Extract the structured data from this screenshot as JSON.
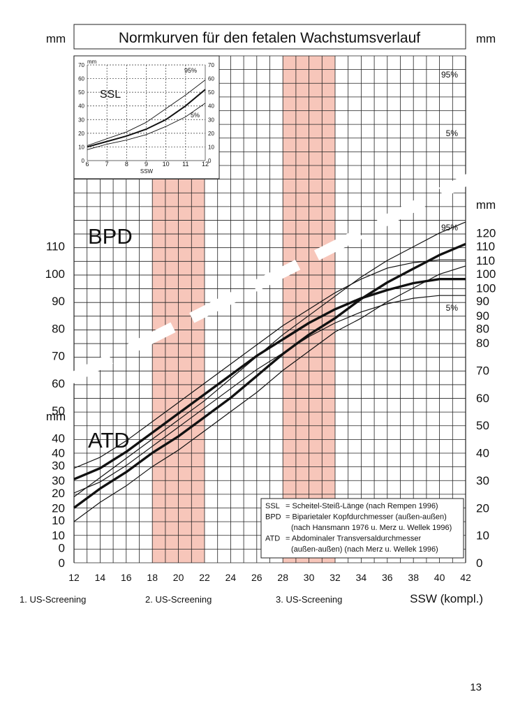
{
  "title": "Normkurven für den fetalen Wachstumsverlauf",
  "page_number": "13",
  "unit_label": "mm",
  "x_axis": {
    "label": "SSW (kompl.)",
    "min": 12,
    "max": 42,
    "ticks": [
      12,
      14,
      16,
      18,
      20,
      22,
      24,
      26,
      28,
      30,
      32,
      34,
      36,
      38,
      40,
      42
    ]
  },
  "screenings": [
    {
      "label": "1. US-Screening",
      "from": null,
      "to": null
    },
    {
      "label": "2. US-Screening",
      "from": 18,
      "to": 22
    },
    {
      "label": "3. US-Screening",
      "from": 28,
      "to": 32
    }
  ],
  "legend": [
    {
      "abbr": "SSL",
      "text": "= Scheitel-Steiß-Länge (nach Rempen 1996)"
    },
    {
      "abbr": "BPD",
      "text": "= Biparietaler Kopfdurchmesser (außen-außen)"
    },
    {
      "abbr": "",
      "text": "(nach Hansmann 1976 u. Merz u. Wellek 1996)"
    },
    {
      "abbr": "ATD",
      "text": "= Abdominaler Transversaldurchmesser"
    },
    {
      "abbr": "",
      "text": "(außen-außen) (nach Merz u. Wellek 1996)"
    }
  ],
  "colors": {
    "screening_band": "#f7c6ba",
    "grid": "#222222",
    "curve": "#111111"
  },
  "chart_data": [
    {
      "type": "line",
      "name": "BPD",
      "title": "BPD",
      "xlabel": "SSW (kompl.)",
      "ylabel": "mm",
      "ylim": [
        0,
        110
      ],
      "left_ticks": [
        0,
        10,
        20,
        30,
        40,
        50,
        60,
        70,
        80,
        90,
        100,
        110
      ],
      "right_ticks": [
        80,
        90,
        100,
        110
      ],
      "x": [
        12,
        14,
        16,
        18,
        20,
        22,
        24,
        26,
        28,
        30,
        32,
        34,
        36,
        38,
        40,
        42
      ],
      "series": [
        {
          "name": "95%",
          "label": "95%",
          "values": [
            29,
            33,
            39,
            46,
            53,
            60,
            67,
            74,
            81,
            87,
            93,
            98,
            102,
            104,
            105,
            105
          ]
        },
        {
          "name": "50%",
          "label": "",
          "values": [
            25,
            29,
            35,
            42,
            49,
            56,
            63,
            70,
            76,
            82,
            87,
            91,
            94,
            96.5,
            98,
            98
          ]
        },
        {
          "name": "5%",
          "label": "5%",
          "values": [
            20,
            24,
            30,
            37,
            44,
            51,
            58,
            65,
            71,
            77,
            82,
            86,
            89,
            91,
            92,
            92
          ]
        }
      ]
    },
    {
      "type": "line",
      "name": "ATD",
      "title": "ATD",
      "xlabel": "SSW (kompl.)",
      "ylabel": "mm",
      "ylim": [
        0,
        120
      ],
      "left_ticks": [
        0,
        10,
        20,
        30,
        40
      ],
      "right_ticks": [
        0,
        10,
        20,
        30,
        40,
        50,
        60,
        70,
        80,
        90,
        100,
        110,
        120
      ],
      "x": [
        12,
        14,
        16,
        18,
        20,
        22,
        24,
        26,
        28,
        30,
        32,
        34,
        36,
        38,
        40,
        42
      ],
      "series": [
        {
          "name": "95%",
          "label": "95%",
          "values": [
            24,
            31,
            38,
            45,
            52,
            59,
            67,
            75,
            83,
            90,
            97,
            104,
            110,
            115,
            120,
            124
          ]
        },
        {
          "name": "50%",
          "label": "",
          "values": [
            20,
            27,
            33,
            40,
            46,
            53,
            60,
            68,
            76,
            83,
            89,
            96,
            102,
            107,
            112,
            116
          ]
        },
        {
          "name": "5%",
          "label": "5%",
          "values": [
            15,
            22,
            28,
            35,
            41,
            48,
            55,
            62,
            70,
            77,
            84,
            89,
            95,
            100,
            105,
            108
          ]
        }
      ]
    },
    {
      "type": "line",
      "name": "SSL",
      "title": "SSL",
      "xlabel": "SSW",
      "ylabel": "mm",
      "xlim": [
        6,
        12
      ],
      "ylim": [
        0,
        70
      ],
      "x_ticks": [
        6,
        7,
        8,
        9,
        10,
        11,
        12
      ],
      "y_ticks": [
        0,
        10,
        20,
        30,
        40,
        50,
        60,
        70
      ],
      "x": [
        6,
        7,
        8,
        9,
        10,
        11,
        12
      ],
      "series": [
        {
          "name": "95%",
          "label": "95%",
          "values": [
            11,
            16,
            21,
            28,
            38,
            48,
            59
          ]
        },
        {
          "name": "50%",
          "label": "",
          "values": [
            10,
            14,
            18,
            23,
            30,
            40,
            52
          ]
        },
        {
          "name": "5%",
          "label": "5%",
          "values": [
            8,
            12,
            15,
            19,
            25,
            32,
            42
          ]
        }
      ]
    }
  ]
}
